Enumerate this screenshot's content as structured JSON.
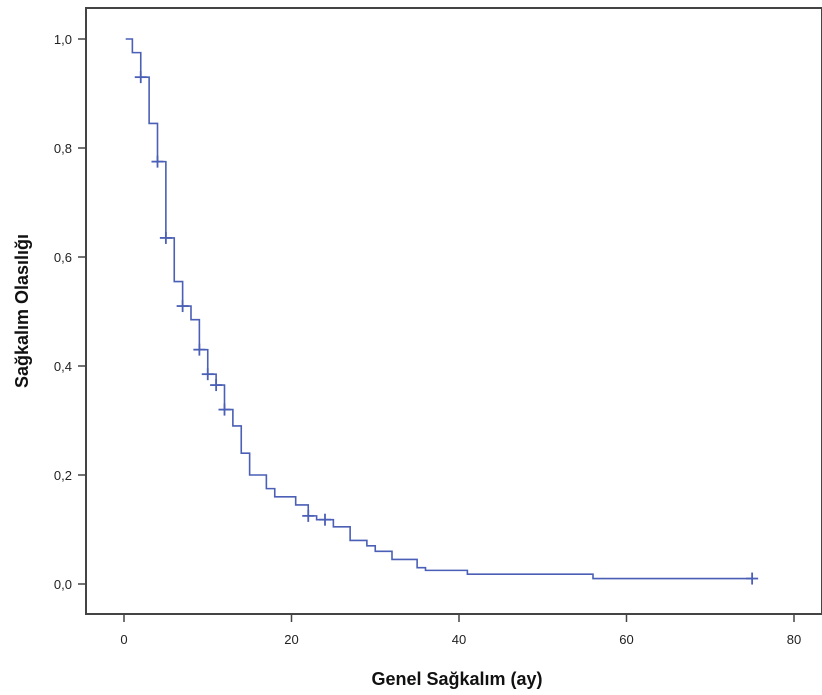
{
  "chart_data": {
    "type": "line",
    "subtype": "kaplan-meier step",
    "title": "",
    "xlabel": "Genel Sağkalım (ay)",
    "ylabel": "Sağkalım Olasılığı",
    "xlim": [
      0,
      80
    ],
    "ylim": [
      0,
      1
    ],
    "x_ticks": [
      0,
      20,
      40,
      60,
      80
    ],
    "x_tick_labels": [
      "0",
      "20",
      "40",
      "60",
      "80"
    ],
    "y_ticks": [
      0,
      0.2,
      0.4,
      0.6,
      0.8,
      1.0
    ],
    "y_tick_labels": [
      "0,0",
      "0,2",
      "0,4",
      "0,6",
      "0,8",
      "1,0"
    ],
    "grid": false,
    "legend": "none",
    "series": [
      {
        "color": "#4a5fb5",
        "steps": [
          {
            "x": 0.2,
            "y": 1.0
          },
          {
            "x": 1.0,
            "y": 0.975
          },
          {
            "x": 2.0,
            "y": 0.93
          },
          {
            "x": 3.0,
            "y": 0.845
          },
          {
            "x": 4.0,
            "y": 0.775
          },
          {
            "x": 5.0,
            "y": 0.635
          },
          {
            "x": 6.0,
            "y": 0.555
          },
          {
            "x": 7.0,
            "y": 0.51
          },
          {
            "x": 8.0,
            "y": 0.485
          },
          {
            "x": 9.0,
            "y": 0.43
          },
          {
            "x": 10.0,
            "y": 0.385
          },
          {
            "x": 11.0,
            "y": 0.365
          },
          {
            "x": 12.0,
            "y": 0.32
          },
          {
            "x": 13.0,
            "y": 0.29
          },
          {
            "x": 14.0,
            "y": 0.24
          },
          {
            "x": 15.0,
            "y": 0.2
          },
          {
            "x": 17.0,
            "y": 0.175
          },
          {
            "x": 18.0,
            "y": 0.16
          },
          {
            "x": 20.5,
            "y": 0.145
          },
          {
            "x": 22.0,
            "y": 0.125
          },
          {
            "x": 23.0,
            "y": 0.118
          },
          {
            "x": 25.0,
            "y": 0.105
          },
          {
            "x": 27.0,
            "y": 0.08
          },
          {
            "x": 29.0,
            "y": 0.07
          },
          {
            "x": 30.0,
            "y": 0.06
          },
          {
            "x": 32.0,
            "y": 0.045
          },
          {
            "x": 35.0,
            "y": 0.03
          },
          {
            "x": 36.0,
            "y": 0.025
          },
          {
            "x": 41.0,
            "y": 0.018
          },
          {
            "x": 56.0,
            "y": 0.01
          },
          {
            "x": 75.0,
            "y": 0.01
          }
        ],
        "censored": [
          {
            "x": 2.0,
            "y": 0.93
          },
          {
            "x": 4.0,
            "y": 0.775
          },
          {
            "x": 5.0,
            "y": 0.635
          },
          {
            "x": 7.0,
            "y": 0.51
          },
          {
            "x": 9.0,
            "y": 0.43
          },
          {
            "x": 10.0,
            "y": 0.385
          },
          {
            "x": 11.0,
            "y": 0.365
          },
          {
            "x": 12.0,
            "y": 0.32
          },
          {
            "x": 22.0,
            "y": 0.125
          },
          {
            "x": 24.0,
            "y": 0.118
          },
          {
            "x": 75.0,
            "y": 0.01
          }
        ]
      }
    ]
  }
}
